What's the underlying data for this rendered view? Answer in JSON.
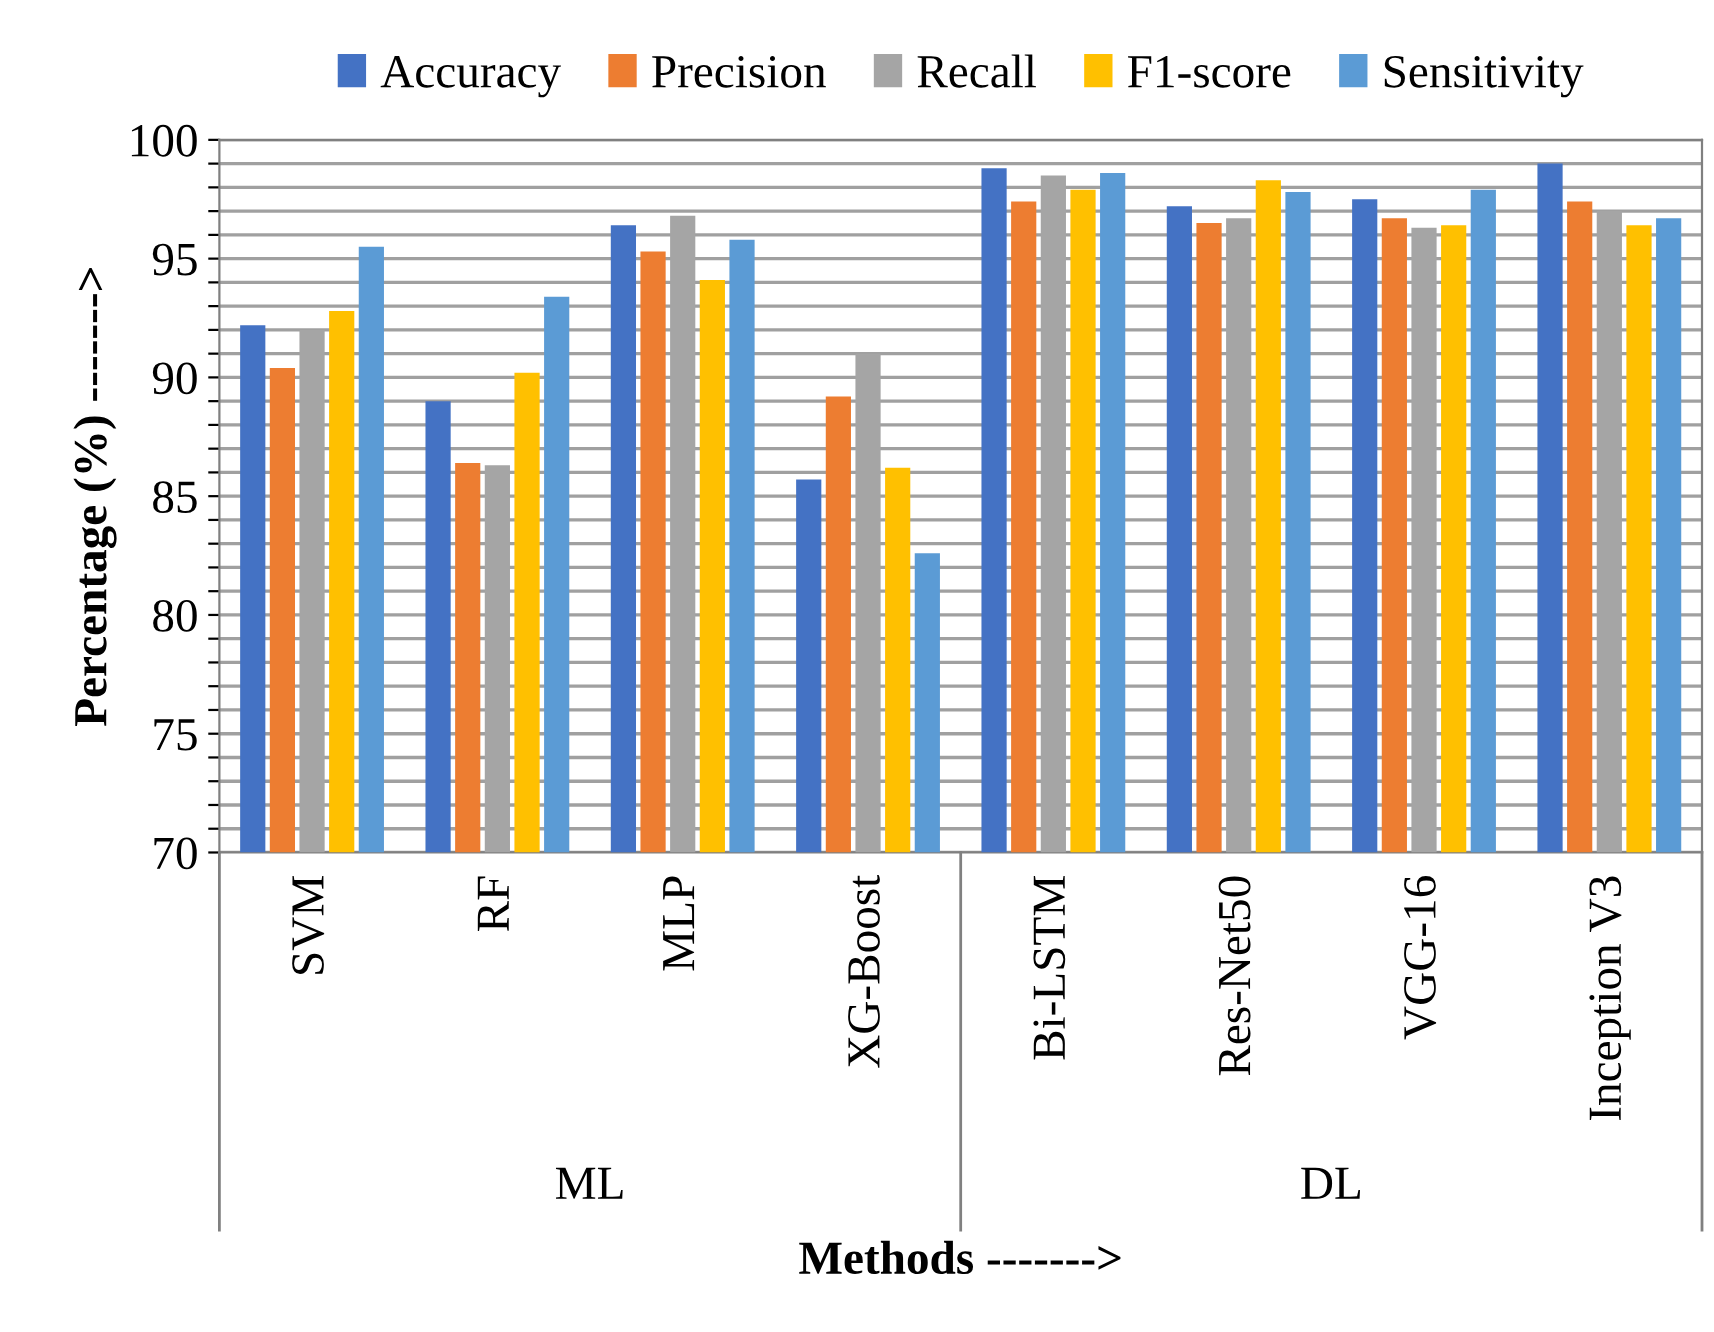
{
  "chart_data": {
    "type": "bar",
    "xlabel": "Methods ------->",
    "ylabel": "Percentage (%) ------->",
    "categories": [
      "SVM",
      "RF",
      "MLP",
      "XG-Boost",
      "Bi-LSTM",
      "Res-Net50",
      "VGG-16",
      "Inception V3"
    ],
    "annotations": [
      "ML",
      "DL"
    ],
    "series": [
      {
        "name": "Accuracy",
        "color": "#4472c4",
        "values": [
          92.2,
          89.0,
          96.4,
          85.7,
          98.8,
          97.2,
          97.5,
          99.0
        ]
      },
      {
        "name": "Precision",
        "color": "#ed7d31",
        "values": [
          90.4,
          86.4,
          95.3,
          89.2,
          97.4,
          96.5,
          96.7,
          97.4
        ]
      },
      {
        "name": "Recall",
        "color": "#a5a5a5",
        "values": [
          92.0,
          86.3,
          96.8,
          91.0,
          98.5,
          96.7,
          96.3,
          97.0
        ]
      },
      {
        "name": "F1-score",
        "color": "#ffc000",
        "values": [
          92.8,
          90.2,
          94.1,
          86.2,
          97.9,
          98.3,
          96.4,
          96.4
        ]
      },
      {
        "name": "Sensitivity",
        "color": "#5b9bd5",
        "values": [
          95.5,
          93.4,
          95.8,
          82.6,
          98.6,
          97.8,
          97.9,
          96.7
        ]
      }
    ],
    "ylim": [
      70,
      100
    ],
    "yticks": [
      70,
      {
        "value": 71,
        "label": null
      },
      {
        "value": 72,
        "label": null
      },
      {
        "value": 73,
        "label": null
      },
      {
        "value": 74,
        "label": null
      },
      75,
      {
        "value": 76,
        "label": null
      },
      {
        "value": 77,
        "label": null
      },
      {
        "value": 78,
        "label": null
      },
      {
        "value": 79,
        "label": null
      },
      80,
      {
        "value": 81,
        "label": null
      },
      {
        "value": 82,
        "label": null
      },
      {
        "value": 83,
        "label": null
      },
      {
        "value": 84,
        "label": null
      },
      85,
      {
        "value": 86,
        "label": null
      },
      {
        "value": 87,
        "label": null
      },
      {
        "value": 88,
        "label": null
      },
      {
        "value": 89,
        "label": null
      },
      90,
      {
        "value": 91,
        "label": null
      },
      {
        "value": 92,
        "label": null
      },
      {
        "value": 93,
        "label": null
      },
      {
        "value": 94,
        "label": null
      },
      95,
      {
        "value": 96,
        "label": null
      },
      {
        "value": 97,
        "label": null
      },
      {
        "value": 98,
        "label": null
      },
      {
        "value": 99,
        "label": null
      },
      100
    ],
    "grid": "y",
    "legend": "top"
  }
}
